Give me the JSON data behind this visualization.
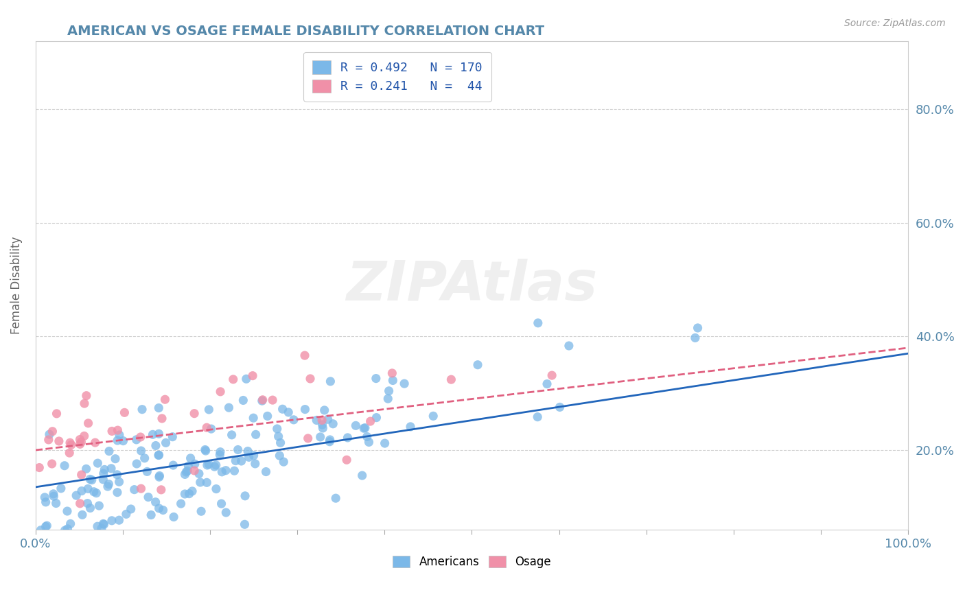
{
  "title": "AMERICAN VS OSAGE FEMALE DISABILITY CORRELATION CHART",
  "source": "Source: ZipAtlas.com",
  "ylabel": "Female Disability",
  "xlim": [
    0.0,
    1.0
  ],
  "ylim": [
    0.06,
    0.92
  ],
  "yticks": [
    0.2,
    0.4,
    0.6,
    0.8
  ],
  "ytick_labels": [
    "20.0%",
    "40.0%",
    "60.0%",
    "80.0%"
  ],
  "legend_items": [
    {
      "label": "R = 0.492   N = 170",
      "color": "#a8c8f0"
    },
    {
      "label": "R = 0.241   N =  44",
      "color": "#f4a8b8"
    }
  ],
  "american_color": "#7bb8e8",
  "osage_color": "#f090a8",
  "american_line_color": "#2266bb",
  "osage_line_color": "#e06080",
  "background_color": "#ffffff",
  "grid_color": "#cccccc",
  "title_color": "#5588aa",
  "american_R": 0.492,
  "american_N": 170,
  "osage_R": 0.241,
  "osage_N": 44,
  "american_slope": 0.235,
  "american_intercept": 0.135,
  "osage_slope": 0.18,
  "osage_intercept": 0.2
}
